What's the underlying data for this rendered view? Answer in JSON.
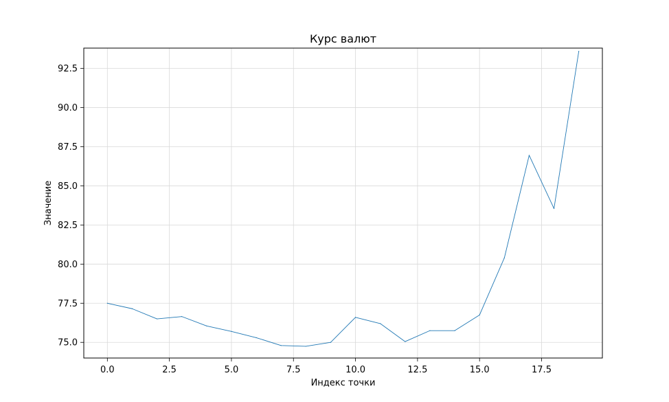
{
  "chart_data": {
    "type": "line",
    "title": "Курс валют",
    "xlabel": "Индекс точки",
    "ylabel": "Значение",
    "xlim": [
      -0.95,
      19.95
    ],
    "ylim": [
      74.0,
      93.8
    ],
    "grid": true,
    "x_ticks": [
      0.0,
      2.5,
      5.0,
      7.5,
      10.0,
      12.5,
      15.0,
      17.5
    ],
    "x_tick_labels": [
      "0.0",
      "2.5",
      "5.0",
      "7.5",
      "10.0",
      "12.5",
      "15.0",
      "17.5"
    ],
    "y_ticks": [
      75.0,
      77.5,
      80.0,
      82.5,
      85.0,
      87.5,
      90.0,
      92.5
    ],
    "y_tick_labels": [
      "75.0",
      "77.5",
      "80.0",
      "82.5",
      "85.0",
      "87.5",
      "90.0",
      "92.5"
    ],
    "series": [
      {
        "color": "#1f77b4",
        "x": [
          0,
          1,
          2,
          3,
          4,
          5,
          6,
          7,
          8,
          9,
          10,
          11,
          12,
          13,
          14,
          15,
          16,
          17,
          18,
          19
        ],
        "values": [
          77.5,
          77.15,
          76.5,
          76.65,
          76.05,
          75.7,
          75.3,
          74.8,
          74.75,
          75.0,
          76.6,
          76.2,
          75.05,
          75.75,
          75.75,
          76.75,
          80.4,
          86.95,
          83.55,
          93.6
        ]
      }
    ]
  }
}
